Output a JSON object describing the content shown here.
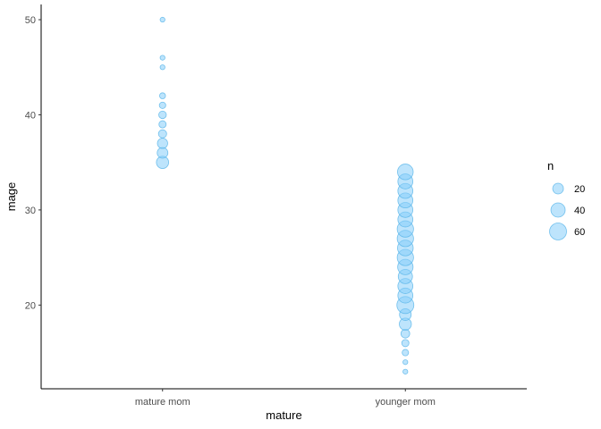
{
  "chart_data": {
    "type": "scatter",
    "title": "",
    "xlabel": "mature",
    "ylabel": "mage",
    "categories": [
      "mature mom",
      "younger mom"
    ],
    "ylim": [
      11.2,
      51.6
    ],
    "yticks": [
      20,
      30,
      40,
      50
    ],
    "grid": false,
    "point_color": "#56B4E9",
    "point_fill": "#87CEFA",
    "points": [
      {
        "x": "mature mom",
        "y": 35,
        "n": 28
      },
      {
        "x": "mature mom",
        "y": 36,
        "n": 20
      },
      {
        "x": "mature mom",
        "y": 37,
        "n": 18
      },
      {
        "x": "mature mom",
        "y": 38,
        "n": 10
      },
      {
        "x": "mature mom",
        "y": 39,
        "n": 7
      },
      {
        "x": "mature mom",
        "y": 40,
        "n": 8
      },
      {
        "x": "mature mom",
        "y": 41,
        "n": 5
      },
      {
        "x": "mature mom",
        "y": 42,
        "n": 4
      },
      {
        "x": "mature mom",
        "y": 45,
        "n": 2
      },
      {
        "x": "mature mom",
        "y": 46,
        "n": 2
      },
      {
        "x": "mature mom",
        "y": 50,
        "n": 2
      },
      {
        "x": "younger mom",
        "y": 13,
        "n": 2
      },
      {
        "x": "younger mom",
        "y": 14,
        "n": 2
      },
      {
        "x": "younger mom",
        "y": 15,
        "n": 5
      },
      {
        "x": "younger mom",
        "y": 16,
        "n": 7
      },
      {
        "x": "younger mom",
        "y": 17,
        "n": 12
      },
      {
        "x": "younger mom",
        "y": 18,
        "n": 27
      },
      {
        "x": "younger mom",
        "y": 19,
        "n": 25
      },
      {
        "x": "younger mom",
        "y": 20,
        "n": 60
      },
      {
        "x": "younger mom",
        "y": 21,
        "n": 45
      },
      {
        "x": "younger mom",
        "y": 22,
        "n": 45
      },
      {
        "x": "younger mom",
        "y": 23,
        "n": 40
      },
      {
        "x": "younger mom",
        "y": 24,
        "n": 48
      },
      {
        "x": "younger mom",
        "y": 25,
        "n": 55
      },
      {
        "x": "younger mom",
        "y": 26,
        "n": 50
      },
      {
        "x": "younger mom",
        "y": 27,
        "n": 55
      },
      {
        "x": "younger mom",
        "y": 28,
        "n": 55
      },
      {
        "x": "younger mom",
        "y": 29,
        "n": 45
      },
      {
        "x": "younger mom",
        "y": 30,
        "n": 45
      },
      {
        "x": "younger mom",
        "y": 31,
        "n": 45
      },
      {
        "x": "younger mom",
        "y": 32,
        "n": 45
      },
      {
        "x": "younger mom",
        "y": 33,
        "n": 45
      },
      {
        "x": "younger mom",
        "y": 34,
        "n": 50
      }
    ],
    "legend": {
      "title": "n",
      "position": "right",
      "entries": [
        {
          "label": "20",
          "n": 20
        },
        {
          "label": "40",
          "n": 40
        },
        {
          "label": "60",
          "n": 60
        }
      ]
    }
  }
}
